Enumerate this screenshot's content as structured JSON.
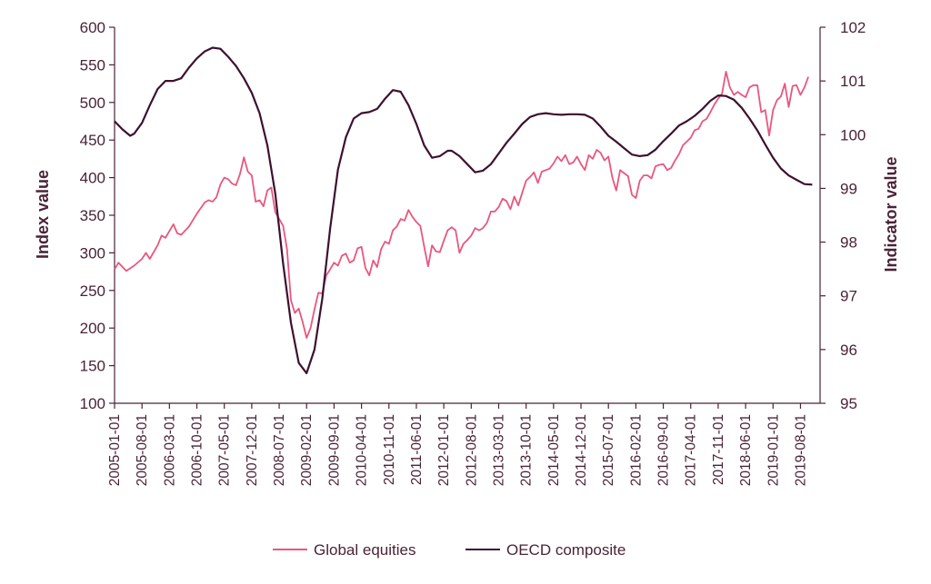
{
  "chart_data": {
    "type": "line",
    "ylabel_left": "Index value",
    "ylabel_right": "Indicator value",
    "ylim_left": [
      100,
      600
    ],
    "ylim_right": [
      95,
      102
    ],
    "yticks_left": [
      "100",
      "150",
      "200",
      "250",
      "300",
      "350",
      "400",
      "450",
      "500",
      "550",
      "600"
    ],
    "yticks_right": [
      "95",
      "96",
      "97",
      "98",
      "99",
      "100",
      "101",
      "102"
    ],
    "x_tick_labels": [
      "2005-01-01",
      "2005-08-01",
      "2006-03-01",
      "2006-10-01",
      "2007-05-01",
      "2007-12-01",
      "2008-07-01",
      "2009-02-01",
      "2009-09-01",
      "2010-04-01",
      "2010-11-01",
      "2011-06-01",
      "2012-01-01",
      "2012-08-01",
      "2013-03-01",
      "2013-10-01",
      "2014-05-01",
      "2014-12-01",
      "2015-07-01",
      "2016-02-01",
      "2016-09-01",
      "2017-04-01",
      "2017-11-01",
      "2018-06-01",
      "2019-01-01",
      "2019-08-01"
    ],
    "x_range": [
      "2005-01-01",
      "2020-01-01"
    ],
    "legend": "bottom",
    "colors": {
      "equities": "#e8577e",
      "oecd": "#3d1130",
      "axis": "#4a2336"
    },
    "series": [
      {
        "name": "Global equities",
        "axis": "left",
        "points": [
          [
            "2005-01-01",
            278
          ],
          [
            "2005-02-01",
            287
          ],
          [
            "2005-04-01",
            276
          ],
          [
            "2005-06-01",
            283
          ],
          [
            "2005-08-01",
            292
          ],
          [
            "2005-09-01",
            300
          ],
          [
            "2005-10-01",
            292
          ],
          [
            "2005-12-01",
            310
          ],
          [
            "2006-01-01",
            323
          ],
          [
            "2006-02-01",
            320
          ],
          [
            "2006-04-01",
            338
          ],
          [
            "2006-05-01",
            326
          ],
          [
            "2006-06-01",
            324
          ],
          [
            "2006-08-01",
            335
          ],
          [
            "2006-10-01",
            352
          ],
          [
            "2006-12-01",
            367
          ],
          [
            "2007-01-01",
            370
          ],
          [
            "2007-02-01",
            368
          ],
          [
            "2007-03-01",
            374
          ],
          [
            "2007-04-01",
            391
          ],
          [
            "2007-05-01",
            400
          ],
          [
            "2007-06-01",
            398
          ],
          [
            "2007-07-01",
            392
          ],
          [
            "2007-08-01",
            390
          ],
          [
            "2007-09-01",
            405
          ],
          [
            "2007-10-01",
            427
          ],
          [
            "2007-11-01",
            408
          ],
          [
            "2007-12-01",
            403
          ],
          [
            "2008-01-01",
            368
          ],
          [
            "2008-02-01",
            370
          ],
          [
            "2008-03-01",
            362
          ],
          [
            "2008-04-01",
            383
          ],
          [
            "2008-05-01",
            387
          ],
          [
            "2008-06-01",
            354
          ],
          [
            "2008-07-01",
            345
          ],
          [
            "2008-08-01",
            336
          ],
          [
            "2008-09-01",
            305
          ],
          [
            "2008-10-01",
            237
          ],
          [
            "2008-11-01",
            220
          ],
          [
            "2008-12-01",
            226
          ],
          [
            "2009-01-01",
            208
          ],
          [
            "2009-02-01",
            187
          ],
          [
            "2009-03-01",
            200
          ],
          [
            "2009-04-01",
            225
          ],
          [
            "2009-05-01",
            247
          ],
          [
            "2009-06-01",
            246
          ],
          [
            "2009-07-01",
            270
          ],
          [
            "2009-08-01",
            278
          ],
          [
            "2009-09-01",
            287
          ],
          [
            "2009-10-01",
            283
          ],
          [
            "2009-11-01",
            296
          ],
          [
            "2009-12-01",
            299
          ],
          [
            "2010-01-01",
            287
          ],
          [
            "2010-02-01",
            290
          ],
          [
            "2010-03-01",
            306
          ],
          [
            "2010-04-01",
            308
          ],
          [
            "2010-05-01",
            280
          ],
          [
            "2010-06-01",
            270
          ],
          [
            "2010-07-01",
            290
          ],
          [
            "2010-08-01",
            281
          ],
          [
            "2010-09-01",
            305
          ],
          [
            "2010-10-01",
            315
          ],
          [
            "2010-11-01",
            312
          ],
          [
            "2010-12-01",
            330
          ],
          [
            "2011-01-01",
            335
          ],
          [
            "2011-02-01",
            345
          ],
          [
            "2011-03-01",
            343
          ],
          [
            "2011-04-01",
            357
          ],
          [
            "2011-05-01",
            348
          ],
          [
            "2011-06-01",
            341
          ],
          [
            "2011-07-01",
            336
          ],
          [
            "2011-08-01",
            308
          ],
          [
            "2011-09-01",
            282
          ],
          [
            "2011-10-01",
            310
          ],
          [
            "2011-11-01",
            302
          ],
          [
            "2011-12-01",
            301
          ],
          [
            "2012-01-01",
            316
          ],
          [
            "2012-02-01",
            330
          ],
          [
            "2012-03-01",
            334
          ],
          [
            "2012-04-01",
            330
          ],
          [
            "2012-05-01",
            300
          ],
          [
            "2012-06-01",
            312
          ],
          [
            "2012-07-01",
            317
          ],
          [
            "2012-08-01",
            323
          ],
          [
            "2012-09-01",
            333
          ],
          [
            "2012-10-01",
            330
          ],
          [
            "2012-11-01",
            333
          ],
          [
            "2012-12-01",
            340
          ],
          [
            "2013-01-01",
            355
          ],
          [
            "2013-02-01",
            355
          ],
          [
            "2013-03-01",
            361
          ],
          [
            "2013-04-01",
            372
          ],
          [
            "2013-05-01",
            369
          ],
          [
            "2013-06-01",
            358
          ],
          [
            "2013-07-01",
            375
          ],
          [
            "2013-08-01",
            363
          ],
          [
            "2013-09-01",
            380
          ],
          [
            "2013-10-01",
            396
          ],
          [
            "2013-11-01",
            401
          ],
          [
            "2013-12-01",
            407
          ],
          [
            "2014-01-01",
            393
          ],
          [
            "2014-02-01",
            408
          ],
          [
            "2014-03-01",
            410
          ],
          [
            "2014-04-01",
            412
          ],
          [
            "2014-05-01",
            419
          ],
          [
            "2014-06-01",
            428
          ],
          [
            "2014-07-01",
            422
          ],
          [
            "2014-08-01",
            430
          ],
          [
            "2014-09-01",
            418
          ],
          [
            "2014-10-01",
            420
          ],
          [
            "2014-11-01",
            428
          ],
          [
            "2014-12-01",
            418
          ],
          [
            "2015-01-01",
            410
          ],
          [
            "2015-02-01",
            430
          ],
          [
            "2015-03-01",
            425
          ],
          [
            "2015-04-01",
            437
          ],
          [
            "2015-05-01",
            433
          ],
          [
            "2015-06-01",
            423
          ],
          [
            "2015-07-01",
            428
          ],
          [
            "2015-08-01",
            400
          ],
          [
            "2015-09-01",
            383
          ],
          [
            "2015-10-01",
            410
          ],
          [
            "2015-11-01",
            406
          ],
          [
            "2015-12-01",
            402
          ],
          [
            "2016-01-01",
            377
          ],
          [
            "2016-02-01",
            373
          ],
          [
            "2016-03-01",
            396
          ],
          [
            "2016-04-01",
            403
          ],
          [
            "2016-05-01",
            403
          ],
          [
            "2016-06-01",
            399
          ],
          [
            "2016-07-01",
            415
          ],
          [
            "2016-08-01",
            417
          ],
          [
            "2016-09-01",
            418
          ],
          [
            "2016-10-01",
            410
          ],
          [
            "2016-11-01",
            413
          ],
          [
            "2016-12-01",
            423
          ],
          [
            "2017-01-01",
            431
          ],
          [
            "2017-02-01",
            443
          ],
          [
            "2017-03-01",
            448
          ],
          [
            "2017-04-01",
            453
          ],
          [
            "2017-05-01",
            463
          ],
          [
            "2017-06-01",
            465
          ],
          [
            "2017-07-01",
            475
          ],
          [
            "2017-08-01",
            478
          ],
          [
            "2017-09-01",
            487
          ],
          [
            "2017-10-01",
            497
          ],
          [
            "2017-11-01",
            505
          ],
          [
            "2017-12-01",
            512
          ],
          [
            "2018-01-01",
            541
          ],
          [
            "2018-02-01",
            520
          ],
          [
            "2018-03-01",
            510
          ],
          [
            "2018-04-01",
            514
          ],
          [
            "2018-05-01",
            510
          ],
          [
            "2018-06-01",
            507
          ],
          [
            "2018-07-01",
            520
          ],
          [
            "2018-08-01",
            523
          ],
          [
            "2018-09-01",
            523
          ],
          [
            "2018-10-01",
            487
          ],
          [
            "2018-11-01",
            490
          ],
          [
            "2018-12-01",
            456
          ],
          [
            "2019-01-01",
            490
          ],
          [
            "2019-02-01",
            503
          ],
          [
            "2019-03-01",
            508
          ],
          [
            "2019-04-01",
            525
          ],
          [
            "2019-05-01",
            494
          ],
          [
            "2019-06-01",
            522
          ],
          [
            "2019-07-01",
            523
          ],
          [
            "2019-08-01",
            510
          ],
          [
            "2019-09-01",
            520
          ],
          [
            "2019-10-01",
            534
          ]
        ]
      },
      {
        "name": "OECD composite",
        "axis": "right",
        "points": [
          [
            "2005-01-01",
            100.25
          ],
          [
            "2005-03-01",
            100.1
          ],
          [
            "2005-05-01",
            99.98
          ],
          [
            "2005-06-01",
            100.02
          ],
          [
            "2005-08-01",
            100.22
          ],
          [
            "2005-10-01",
            100.55
          ],
          [
            "2005-12-01",
            100.85
          ],
          [
            "2006-02-01",
            101.0
          ],
          [
            "2006-04-01",
            101.0
          ],
          [
            "2006-06-01",
            101.05
          ],
          [
            "2006-08-01",
            101.25
          ],
          [
            "2006-10-01",
            101.42
          ],
          [
            "2006-12-01",
            101.55
          ],
          [
            "2007-02-01",
            101.62
          ],
          [
            "2007-04-01",
            101.6
          ],
          [
            "2007-06-01",
            101.45
          ],
          [
            "2007-08-01",
            101.28
          ],
          [
            "2007-10-01",
            101.05
          ],
          [
            "2007-12-01",
            100.78
          ],
          [
            "2008-02-01",
            100.4
          ],
          [
            "2008-04-01",
            99.8
          ],
          [
            "2008-06-01",
            98.9
          ],
          [
            "2008-08-01",
            97.6
          ],
          [
            "2008-10-01",
            96.5
          ],
          [
            "2008-12-01",
            95.75
          ],
          [
            "2009-02-01",
            95.56
          ],
          [
            "2009-04-01",
            96.0
          ],
          [
            "2009-06-01",
            96.95
          ],
          [
            "2009-08-01",
            98.25
          ],
          [
            "2009-10-01",
            99.35
          ],
          [
            "2009-12-01",
            99.95
          ],
          [
            "2010-02-01",
            100.3
          ],
          [
            "2010-04-01",
            100.4
          ],
          [
            "2010-06-01",
            100.42
          ],
          [
            "2010-08-01",
            100.48
          ],
          [
            "2010-10-01",
            100.67
          ],
          [
            "2010-12-01",
            100.83
          ],
          [
            "2011-02-01",
            100.8
          ],
          [
            "2011-04-01",
            100.55
          ],
          [
            "2011-06-01",
            100.2
          ],
          [
            "2011-08-01",
            99.8
          ],
          [
            "2011-10-01",
            99.57
          ],
          [
            "2011-12-01",
            99.6
          ],
          [
            "2012-02-01",
            99.7
          ],
          [
            "2012-03-01",
            99.7
          ],
          [
            "2012-05-01",
            99.6
          ],
          [
            "2012-07-01",
            99.45
          ],
          [
            "2012-09-01",
            99.3
          ],
          [
            "2012-11-01",
            99.33
          ],
          [
            "2013-01-01",
            99.45
          ],
          [
            "2013-03-01",
            99.65
          ],
          [
            "2013-05-01",
            99.85
          ],
          [
            "2013-07-01",
            100.02
          ],
          [
            "2013-09-01",
            100.2
          ],
          [
            "2013-11-01",
            100.33
          ],
          [
            "2014-01-01",
            100.38
          ],
          [
            "2014-03-01",
            100.4
          ],
          [
            "2014-05-01",
            100.38
          ],
          [
            "2014-07-01",
            100.37
          ],
          [
            "2014-09-01",
            100.38
          ],
          [
            "2014-11-01",
            100.38
          ],
          [
            "2015-01-01",
            100.37
          ],
          [
            "2015-03-01",
            100.3
          ],
          [
            "2015-05-01",
            100.15
          ],
          [
            "2015-07-01",
            99.98
          ],
          [
            "2015-09-01",
            99.87
          ],
          [
            "2015-11-01",
            99.75
          ],
          [
            "2016-01-01",
            99.63
          ],
          [
            "2016-03-01",
            99.6
          ],
          [
            "2016-05-01",
            99.62
          ],
          [
            "2016-07-01",
            99.72
          ],
          [
            "2016-09-01",
            99.88
          ],
          [
            "2016-11-01",
            100.02
          ],
          [
            "2017-01-01",
            100.17
          ],
          [
            "2017-03-01",
            100.25
          ],
          [
            "2017-05-01",
            100.35
          ],
          [
            "2017-07-01",
            100.48
          ],
          [
            "2017-09-01",
            100.63
          ],
          [
            "2017-11-01",
            100.73
          ],
          [
            "2018-01-01",
            100.72
          ],
          [
            "2018-03-01",
            100.65
          ],
          [
            "2018-05-01",
            100.5
          ],
          [
            "2018-07-01",
            100.3
          ],
          [
            "2018-09-01",
            100.08
          ],
          [
            "2018-11-01",
            99.82
          ],
          [
            "2019-01-01",
            99.57
          ],
          [
            "2019-03-01",
            99.37
          ],
          [
            "2019-05-01",
            99.24
          ],
          [
            "2019-07-01",
            99.16
          ],
          [
            "2019-09-01",
            99.08
          ],
          [
            "2019-11-01",
            99.07
          ]
        ]
      }
    ]
  }
}
